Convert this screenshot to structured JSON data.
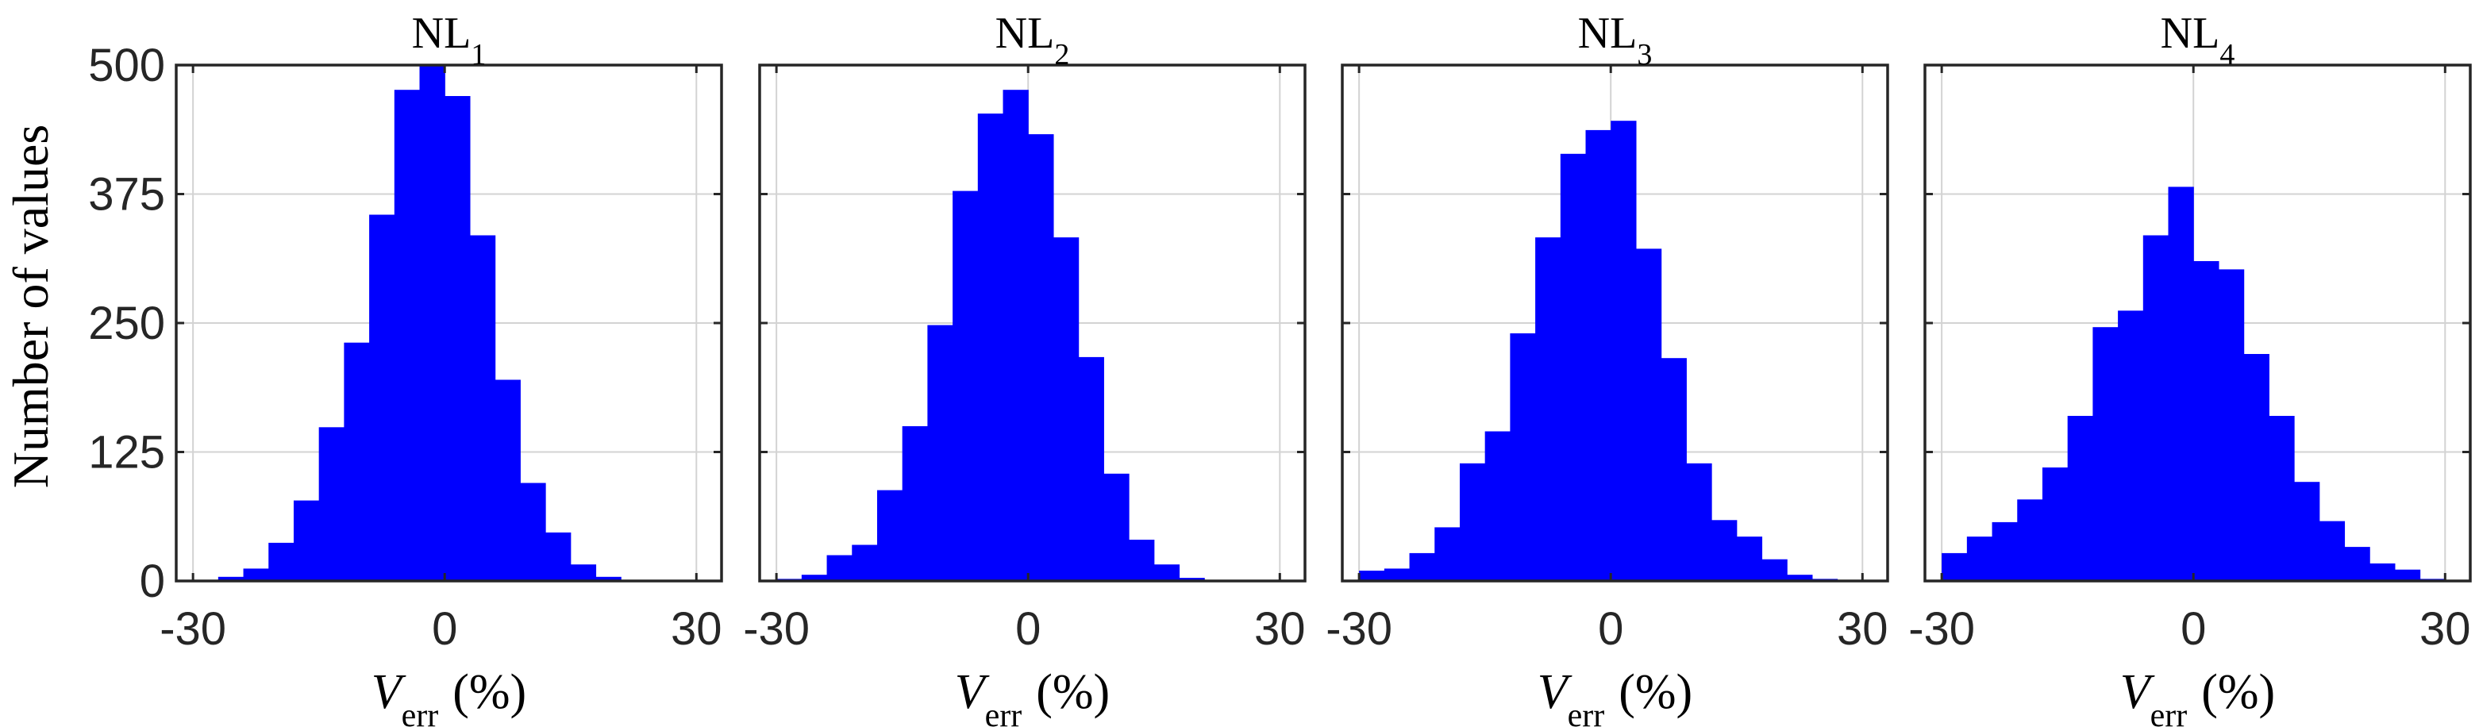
{
  "figure": {
    "ylabel": "Number of values",
    "colors": {
      "bars": "#0000ff",
      "grid": "#d3d3d3",
      "axes": "#262626"
    }
  },
  "chart_data": [
    {
      "type": "bar",
      "title": {
        "base": "NL",
        "sub": "1"
      },
      "xlabel": {
        "main": "V",
        "sub": "err",
        "unit": "(%)"
      },
      "xlim": [
        -32,
        33
      ],
      "ylim": [
        0,
        500
      ],
      "xticks": [
        -30,
        0,
        30
      ],
      "yticks": [
        0,
        125,
        250,
        375,
        500
      ],
      "grid": true,
      "bin_edges": [
        -30,
        -27,
        -24,
        -21,
        -18,
        -15,
        -12,
        -9,
        -6,
        -3,
        0,
        3,
        6,
        9,
        12,
        15,
        18,
        21,
        24,
        27,
        30
      ],
      "values": [
        1,
        4,
        12,
        37,
        78,
        149,
        231,
        355,
        476,
        500,
        470,
        335,
        195,
        95,
        47,
        16,
        4,
        1,
        0,
        0
      ]
    },
    {
      "type": "bar",
      "title": {
        "base": "NL",
        "sub": "2"
      },
      "xlabel": {
        "main": "V",
        "sub": "err",
        "unit": "(%)"
      },
      "xlim": [
        -32,
        33
      ],
      "ylim": [
        0,
        500
      ],
      "xticks": [
        -30,
        0,
        30
      ],
      "yticks": [
        0,
        125,
        250,
        375,
        500
      ],
      "grid": true,
      "bin_edges": [
        -30,
        -27,
        -24,
        -21,
        -18,
        -15,
        -12,
        -9,
        -6,
        -3,
        0,
        3,
        6,
        9,
        12,
        15,
        18,
        21,
        24,
        27,
        30
      ],
      "values": [
        2,
        6,
        25,
        35,
        88,
        150,
        248,
        378,
        453,
        476,
        433,
        333,
        217,
        104,
        40,
        16,
        3,
        1,
        0,
        0
      ]
    },
    {
      "type": "bar",
      "title": {
        "base": "NL",
        "sub": "3"
      },
      "xlabel": {
        "main": "V",
        "sub": "err",
        "unit": "(%)"
      },
      "xlim": [
        -32,
        33
      ],
      "ylim": [
        0,
        500
      ],
      "xticks": [
        -30,
        0,
        30
      ],
      "yticks": [
        0,
        125,
        250,
        375,
        500
      ],
      "grid": true,
      "bin_edges": [
        -30,
        -27,
        -24,
        -21,
        -18,
        -15,
        -12,
        -9,
        -6,
        -3,
        0,
        3,
        6,
        9,
        12,
        15,
        18,
        21,
        24,
        27,
        30
      ],
      "values": [
        10,
        12,
        27,
        52,
        114,
        145,
        240,
        333,
        414,
        437,
        446,
        322,
        216,
        114,
        59,
        43,
        21,
        6,
        2,
        1
      ]
    },
    {
      "type": "bar",
      "title": {
        "base": "NL",
        "sub": "4"
      },
      "xlabel": {
        "main": "V",
        "sub": "err",
        "unit": "(%)"
      },
      "xlim": [
        -32,
        33
      ],
      "ylim": [
        0,
        500
      ],
      "xticks": [
        -30,
        0,
        30
      ],
      "yticks": [
        0,
        125,
        250,
        375,
        500
      ],
      "grid": true,
      "bin_edges": [
        -30,
        -27,
        -24,
        -21,
        -18,
        -15,
        -12,
        -9,
        -6,
        -3,
        0,
        3,
        6,
        9,
        12,
        15,
        18,
        21,
        24,
        27,
        30
      ],
      "values": [
        27,
        43,
        57,
        79,
        110,
        160,
        246,
        262,
        335,
        382,
        310,
        302,
        220,
        160,
        96,
        58,
        33,
        17,
        11,
        2
      ]
    }
  ]
}
